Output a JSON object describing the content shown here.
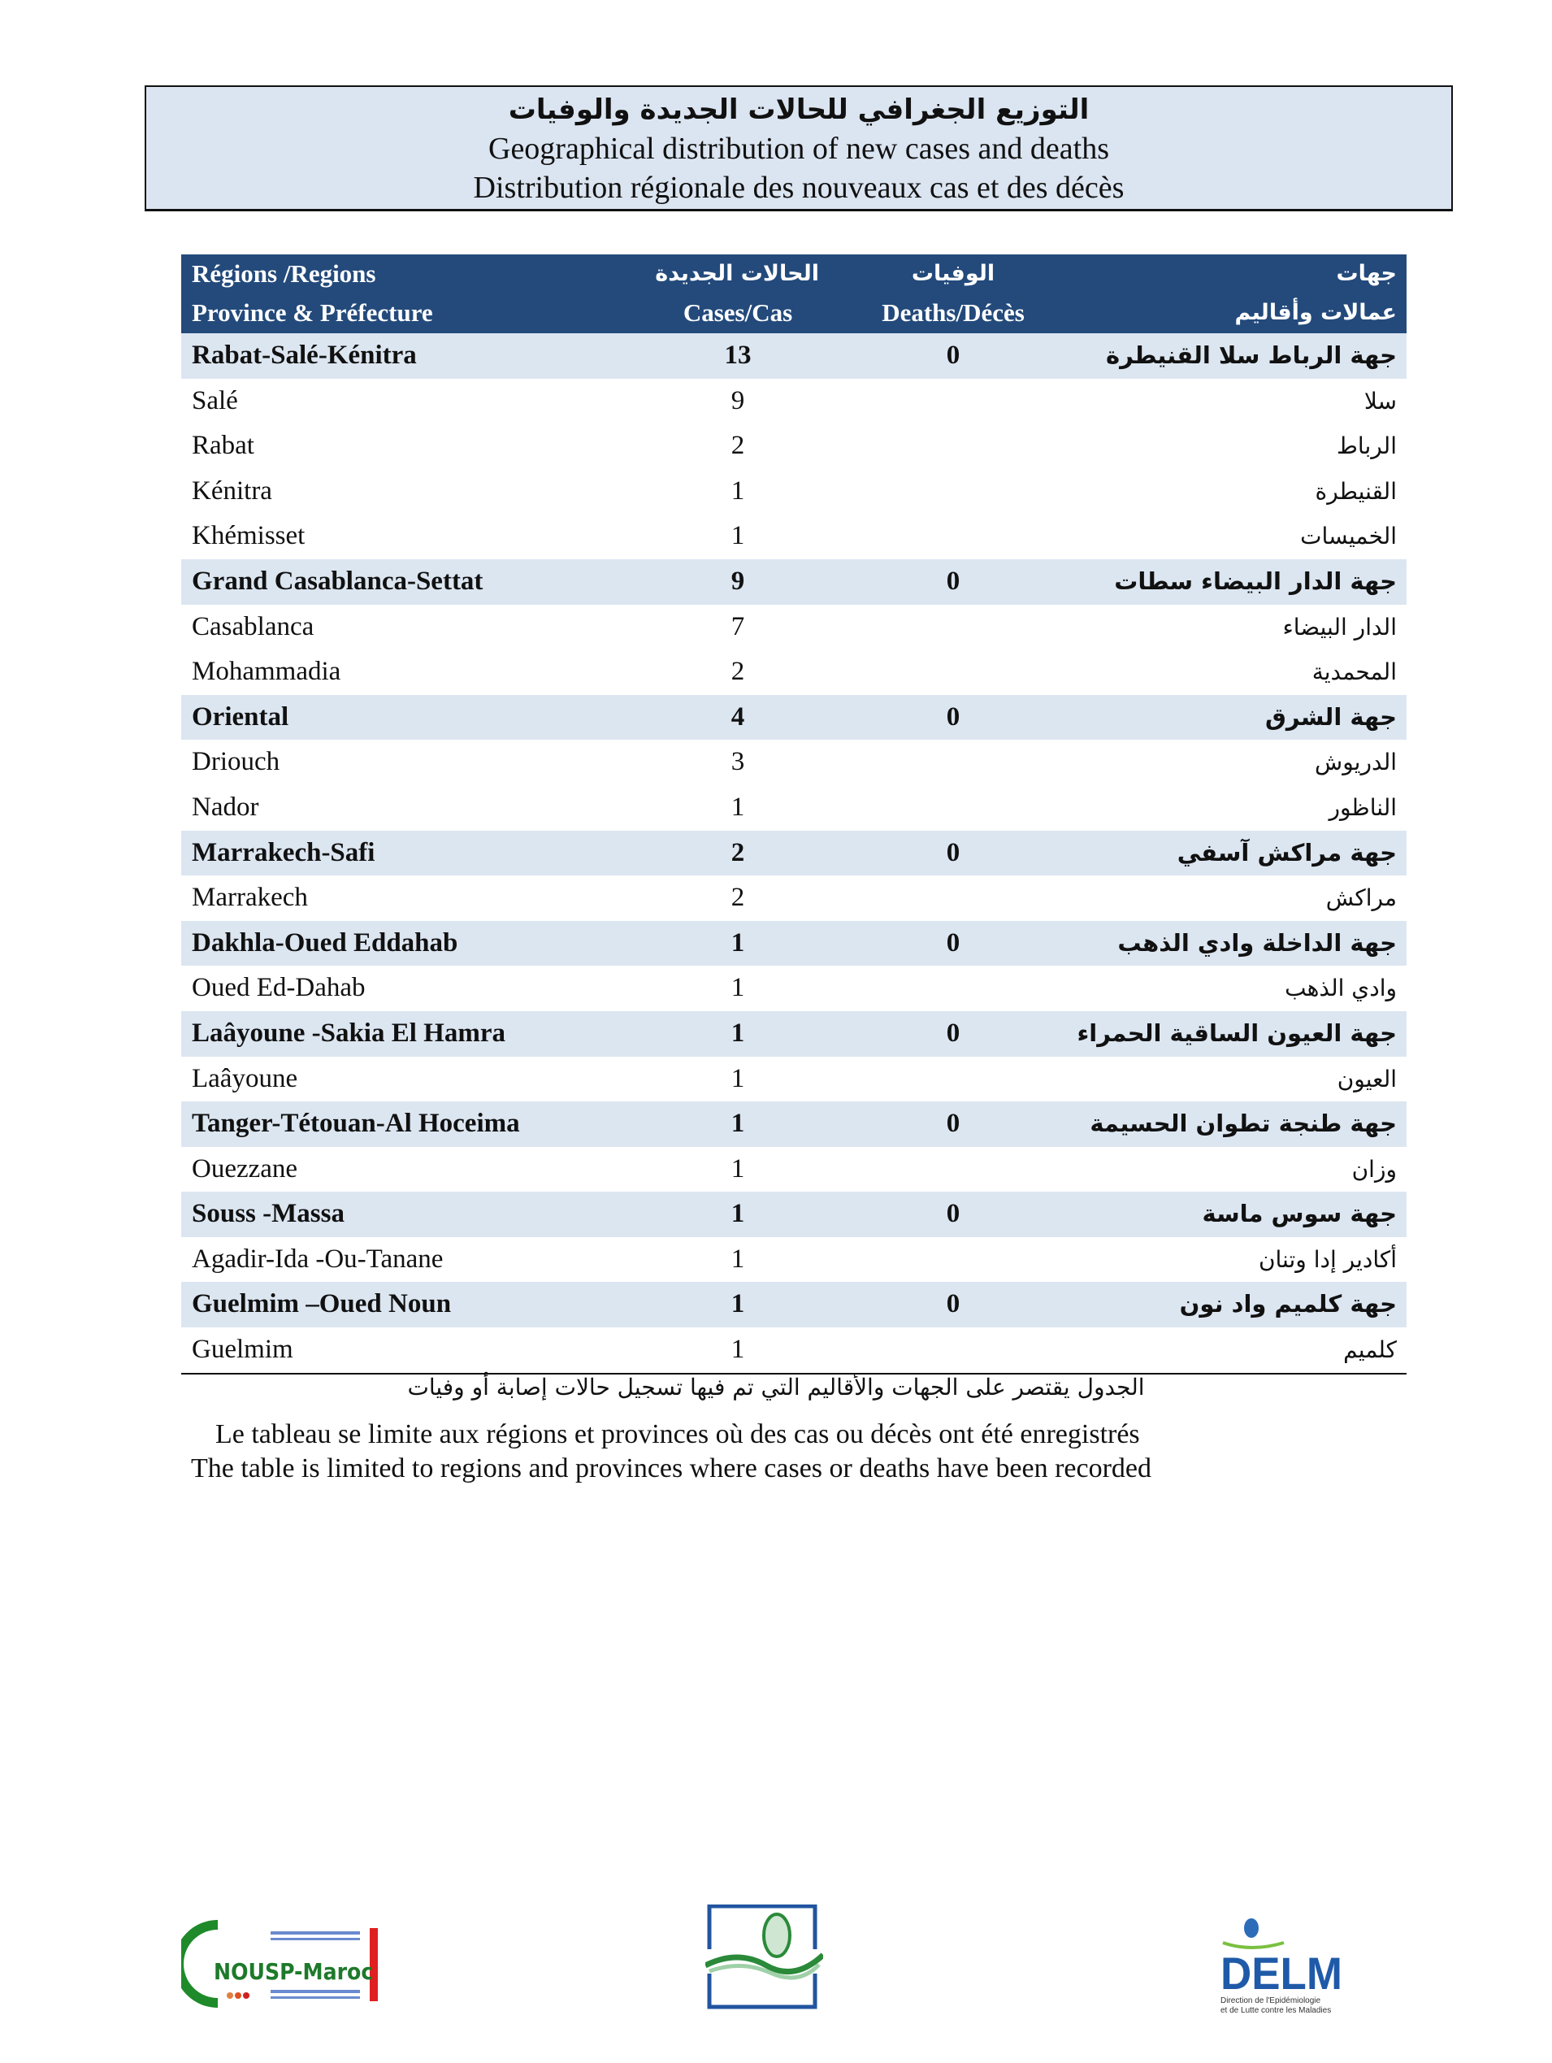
{
  "title": {
    "arabic": "التوزيع الجغرافي للحالات الجديدة والوفيات",
    "english": "Geographical distribution of new cases and deaths",
    "french": "Distribution régionale des nouveaux cas et des décès"
  },
  "table": {
    "headers": {
      "region_line1": "Régions /Regions",
      "region_line2": "Province & Préfecture",
      "cases_ar": "الحالات الجديدة",
      "cases": "Cases/Cas",
      "deaths_ar": "الوفيات",
      "deaths": "Deaths/Décès",
      "name_ar_line1": "جهات",
      "name_ar_line2": "عمالات وأقاليم"
    },
    "rows": [
      {
        "type": "region",
        "name": "Rabat-Salé-Kénitra",
        "cases": "13",
        "deaths": "0",
        "name_ar": "جهة الرباط سلا القنيطرة"
      },
      {
        "type": "province",
        "name": "Salé",
        "cases": "9",
        "deaths": "",
        "name_ar": "سلا"
      },
      {
        "type": "province",
        "name": "Rabat",
        "cases": "2",
        "deaths": "",
        "name_ar": "الرباط"
      },
      {
        "type": "province",
        "name": "Kénitra",
        "cases": "1",
        "deaths": "",
        "name_ar": "القنيطرة"
      },
      {
        "type": "province",
        "name": "Khémisset",
        "cases": "1",
        "deaths": "",
        "name_ar": "الخميسات"
      },
      {
        "type": "region",
        "name": "Grand Casablanca-Settat",
        "cases": "9",
        "deaths": "0",
        "name_ar": "جهة الدار البيضاء سطات"
      },
      {
        "type": "province",
        "name": "Casablanca",
        "cases": "7",
        "deaths": "",
        "name_ar": "الدار البيضاء"
      },
      {
        "type": "province",
        "name": "Mohammadia",
        "cases": "2",
        "deaths": "",
        "name_ar": "المحمدية"
      },
      {
        "type": "region",
        "name": "Oriental",
        "cases": "4",
        "deaths": "0",
        "name_ar": "جهة الشرق"
      },
      {
        "type": "province",
        "name": "Driouch",
        "cases": "3",
        "deaths": "",
        "name_ar": "الدريوش"
      },
      {
        "type": "province",
        "name": "Nador",
        "cases": "1",
        "deaths": "",
        "name_ar": "الناظور"
      },
      {
        "type": "region",
        "name": "Marrakech-Safi",
        "cases": "2",
        "deaths": "0",
        "name_ar": "جهة مراكش آسفي"
      },
      {
        "type": "province",
        "name": "Marrakech",
        "cases": "2",
        "deaths": "",
        "name_ar": "مراكش"
      },
      {
        "type": "region",
        "name": "Dakhla-Oued Eddahab",
        "cases": "1",
        "deaths": "0",
        "name_ar": "جهة الداخلة وادي الذهب"
      },
      {
        "type": "province",
        "name": "Oued Ed-Dahab",
        "cases": "1",
        "deaths": "",
        "name_ar": "وادي الذهب"
      },
      {
        "type": "region",
        "name": "Laâyoune -Sakia El Hamra",
        "cases": "1",
        "deaths": "0",
        "name_ar": "جهة العيون الساقية الحمراء"
      },
      {
        "type": "province",
        "name": "Laâyoune",
        "cases": "1",
        "deaths": "",
        "name_ar": "العيون"
      },
      {
        "type": "region",
        "name": "Tanger-Tétouan-Al Hoceima",
        "cases": "1",
        "deaths": "0",
        "name_ar": "جهة طنجة تطوان الحسيمة"
      },
      {
        "type": "province",
        "name": "Ouezzane",
        "cases": "1",
        "deaths": "",
        "name_ar": "وزان"
      },
      {
        "type": "region",
        "name": "Souss -Massa",
        "cases": "1",
        "deaths": "0",
        "name_ar": "جهة سوس ماسة"
      },
      {
        "type": "province",
        "name": "Agadir-Ida -Ou-Tanane",
        "cases": "1",
        "deaths": "",
        "name_ar": "أكادير إدا وتنان"
      },
      {
        "type": "region",
        "name": "Guelmim –Oued Noun",
        "cases": "1",
        "deaths": "0",
        "name_ar": "جهة كلميم واد نون"
      },
      {
        "type": "province",
        "name": "Guelmim",
        "cases": "1",
        "deaths": "",
        "name_ar": "كلميم"
      }
    ]
  },
  "notes": {
    "arabic": "الجدول يقتصر على الجهات والأقاليم التي تم فيها تسجيل حالات إصابة أو وفيات",
    "french": "Le tableau se limite aux régions et provinces où des cas ou décès ont été enregistrés",
    "english": "The table is limited to regions and provinces where cases or deaths have been recorded"
  },
  "logos": {
    "left": {
      "text": "NOUSP-Maroc",
      "icon": "nousp-logo"
    },
    "center": {
      "icon": "ministry-health-logo"
    },
    "right": {
      "text": "DELM",
      "subtitle_line1": "Direction de l'Epidémiologie",
      "subtitle_line2": "et de Lutte contre les Maladies",
      "icon": "delm-logo"
    }
  },
  "colors": {
    "header_bg": "#234a7b",
    "region_row_bg": "#dce6f1",
    "title_bg": "#dbe5f1"
  }
}
